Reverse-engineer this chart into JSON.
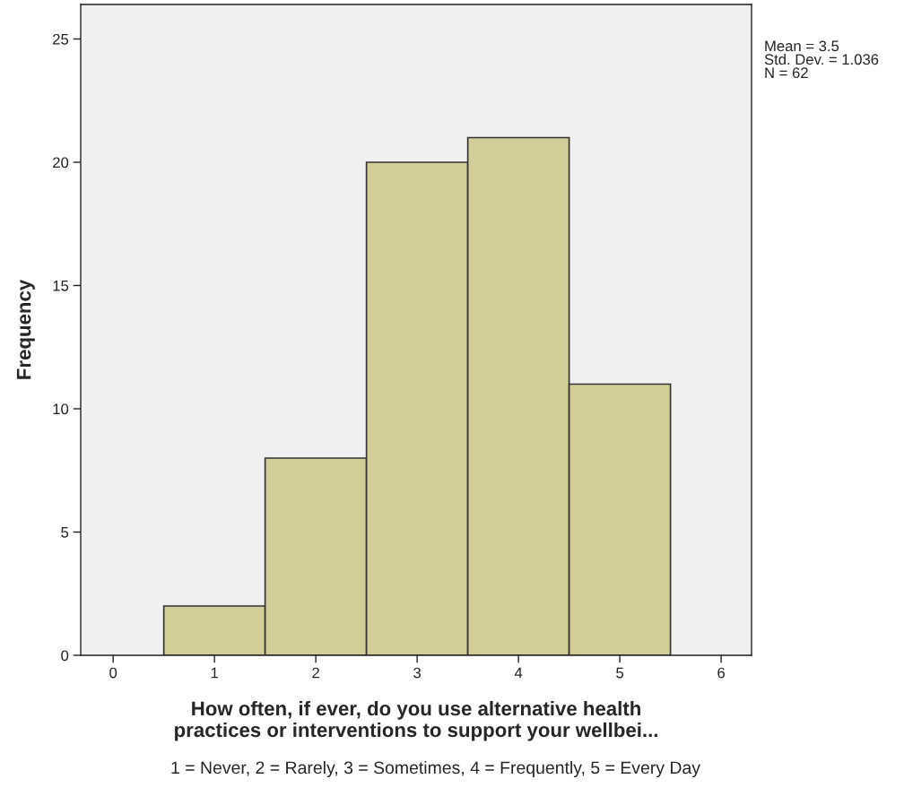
{
  "chart_data": {
    "type": "histogram",
    "xlabel": "How often, if ever, do you use alternative health\npractices or interventions to support your wellbei...",
    "ylabel": "Frequency",
    "bins": [
      0.5,
      1.5,
      2.5,
      3.5,
      4.5,
      5.5
    ],
    "values": [
      2,
      8,
      20,
      21,
      11
    ],
    "color": "#d3ce97",
    "xlim": [
      -0.32,
      6.3
    ],
    "xticks": [
      0,
      1,
      2,
      3,
      4,
      5,
      6
    ],
    "ylim": [
      0,
      26.4
    ],
    "yticks": [
      0,
      5,
      10,
      15,
      20,
      25
    ],
    "grid": false,
    "annotations": [
      "Mean = 3.5\nStd. Dev. = 1.036\nN = 62",
      "1 = Never, 2 = Rarely, 3 = Sometimes, 4 = Frequently, 5 = Every Day"
    ]
  }
}
